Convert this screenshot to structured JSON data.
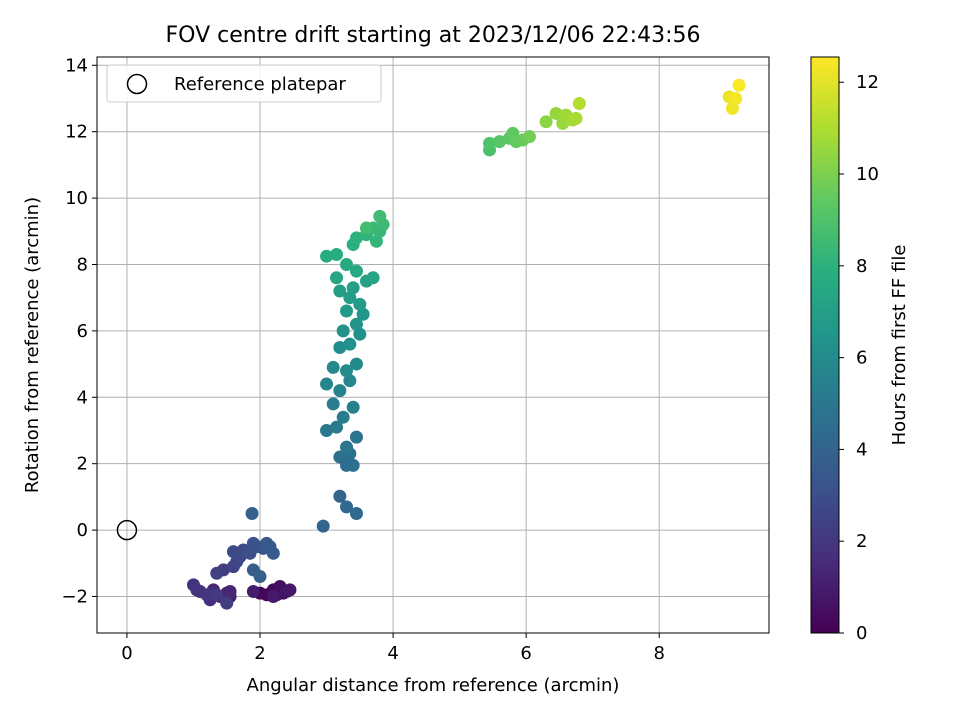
{
  "chart_data": {
    "type": "scatter",
    "title": "FOV centre drift starting at 2023/12/06 22:43:56",
    "xlabel": "Angular distance from reference (arcmin)",
    "ylabel": "Rotation from reference (arcmin)",
    "xlim": [
      -0.45,
      9.65
    ],
    "ylim": [
      -3.1,
      14.25
    ],
    "xticks": [
      0,
      2,
      4,
      6,
      8
    ],
    "yticks": [
      -2,
      0,
      2,
      4,
      6,
      8,
      10,
      12,
      14
    ],
    "xtick_labels": [
      "0",
      "2",
      "4",
      "6",
      "8"
    ],
    "ytick_labels": [
      "−2",
      "0",
      "2",
      "4",
      "6",
      "8",
      "10",
      "12",
      "14"
    ],
    "grid": true,
    "colormap": "viridis",
    "legend": {
      "position": "top-left",
      "entries": [
        {
          "label": "Reference platepar",
          "marker": "open-circle",
          "color": "#000000"
        }
      ]
    },
    "reference_point": {
      "x": 0,
      "y": 0
    },
    "colorbar": {
      "label": "Hours from first FF file",
      "range": [
        0,
        12.55
      ],
      "ticks": [
        0,
        2,
        4,
        6,
        8,
        10,
        12
      ],
      "tick_labels": [
        "0",
        "2",
        "4",
        "6",
        "8",
        "10",
        "12"
      ]
    },
    "points": [
      [
        2.0,
        -1.9,
        0.1
      ],
      [
        2.1,
        -1.95,
        0.2
      ],
      [
        2.2,
        -1.8,
        0.3
      ],
      [
        2.25,
        -1.95,
        0.4
      ],
      [
        2.3,
        -1.7,
        0.5
      ],
      [
        2.35,
        -1.9,
        0.6
      ],
      [
        2.4,
        -1.85,
        0.7
      ],
      [
        2.45,
        -1.8,
        0.8
      ],
      [
        2.2,
        -2.0,
        0.9
      ],
      [
        1.9,
        -1.85,
        1.0
      ],
      [
        1.55,
        -2.0,
        1.1
      ],
      [
        1.5,
        -1.9,
        1.2
      ],
      [
        1.4,
        -2.0,
        1.3
      ],
      [
        1.55,
        -1.85,
        1.4
      ],
      [
        1.3,
        -1.8,
        1.5
      ],
      [
        1.25,
        -2.1,
        1.6
      ],
      [
        1.1,
        -1.85,
        1.7
      ],
      [
        1.0,
        -1.65,
        1.8
      ],
      [
        1.05,
        -1.8,
        1.9
      ],
      [
        1.2,
        -1.95,
        2.0
      ],
      [
        1.35,
        -1.95,
        2.1
      ],
      [
        1.5,
        -2.2,
        2.2
      ],
      [
        1.45,
        -1.2,
        2.3
      ],
      [
        1.35,
        -1.3,
        2.4
      ],
      [
        1.6,
        -1.1,
        2.5
      ],
      [
        1.65,
        -0.95,
        2.6
      ],
      [
        1.7,
        -0.8,
        2.7
      ],
      [
        1.6,
        -0.65,
        2.8
      ],
      [
        1.75,
        -0.6,
        2.9
      ],
      [
        1.85,
        -0.7,
        3.0
      ],
      [
        1.95,
        -0.5,
        3.1
      ],
      [
        1.9,
        -0.4,
        3.2
      ],
      [
        2.05,
        -0.55,
        3.3
      ],
      [
        2.15,
        -0.5,
        3.4
      ],
      [
        2.1,
        -0.4,
        3.5
      ],
      [
        2.2,
        -0.7,
        3.6
      ],
      [
        1.9,
        -1.2,
        3.7
      ],
      [
        2.0,
        -1.4,
        3.8
      ],
      [
        1.88,
        0.5,
        3.9
      ],
      [
        2.95,
        0.12,
        4.0
      ],
      [
        3.2,
        1.02,
        4.1
      ],
      [
        3.3,
        0.7,
        4.2
      ],
      [
        3.45,
        0.5,
        4.3
      ],
      [
        3.3,
        1.95,
        4.4
      ],
      [
        3.4,
        1.95,
        4.5
      ],
      [
        3.2,
        2.2,
        4.6
      ],
      [
        3.35,
        2.3,
        4.7
      ],
      [
        3.45,
        2.8,
        4.8
      ],
      [
        3.3,
        2.5,
        4.9
      ],
      [
        3.0,
        3.0,
        5.0
      ],
      [
        3.15,
        3.1,
        5.1
      ],
      [
        3.25,
        3.4,
        5.2
      ],
      [
        3.1,
        3.8,
        5.3
      ],
      [
        3.4,
        3.7,
        5.4
      ],
      [
        3.2,
        4.2,
        5.5
      ],
      [
        3.0,
        4.4,
        5.6
      ],
      [
        3.35,
        4.5,
        5.7
      ],
      [
        3.1,
        4.9,
        5.8
      ],
      [
        3.45,
        5.0,
        5.9
      ],
      [
        3.3,
        4.8,
        6.0
      ],
      [
        3.2,
        5.5,
        6.1
      ],
      [
        3.35,
        5.6,
        6.2
      ],
      [
        3.5,
        5.9,
        6.3
      ],
      [
        3.25,
        6.0,
        6.4
      ],
      [
        3.45,
        6.2,
        6.5
      ],
      [
        3.55,
        6.5,
        6.6
      ],
      [
        3.3,
        6.6,
        6.7
      ],
      [
        3.5,
        6.8,
        6.8
      ],
      [
        3.35,
        7.0,
        6.9
      ],
      [
        3.2,
        7.2,
        7.0
      ],
      [
        3.4,
        7.3,
        7.1
      ],
      [
        3.6,
        7.5,
        7.2
      ],
      [
        3.7,
        7.6,
        7.3
      ],
      [
        3.15,
        7.6,
        7.4
      ],
      [
        3.45,
        7.8,
        7.5
      ],
      [
        3.3,
        8.0,
        7.6
      ],
      [
        3.0,
        8.25,
        7.7
      ],
      [
        3.15,
        8.3,
        7.8
      ],
      [
        3.4,
        8.6,
        7.9
      ],
      [
        3.45,
        8.8,
        8.0
      ],
      [
        3.6,
        8.9,
        8.1
      ],
      [
        3.75,
        8.7,
        8.2
      ],
      [
        3.8,
        9.0,
        8.3
      ],
      [
        3.7,
        9.1,
        8.4
      ],
      [
        3.85,
        9.2,
        8.5
      ],
      [
        3.8,
        9.45,
        8.6
      ],
      [
        3.6,
        9.1,
        8.7
      ],
      [
        5.45,
        11.45,
        8.9
      ],
      [
        5.45,
        11.65,
        9.0
      ],
      [
        5.6,
        11.7,
        9.2
      ],
      [
        5.75,
        11.8,
        9.3
      ],
      [
        5.8,
        11.95,
        9.4
      ],
      [
        5.85,
        11.7,
        9.5
      ],
      [
        5.95,
        11.75,
        9.6
      ],
      [
        6.05,
        11.85,
        9.8
      ],
      [
        6.3,
        12.3,
        10.3
      ],
      [
        6.45,
        12.55,
        10.5
      ],
      [
        6.55,
        12.25,
        10.6
      ],
      [
        6.6,
        12.5,
        10.7
      ],
      [
        6.7,
        12.35,
        10.8
      ],
      [
        6.75,
        12.4,
        10.9
      ],
      [
        6.8,
        12.85,
        11.1
      ],
      [
        9.05,
        13.05,
        12.2
      ],
      [
        9.1,
        12.7,
        12.3
      ],
      [
        9.15,
        13.0,
        12.4
      ],
      [
        9.2,
        13.4,
        12.5
      ]
    ]
  }
}
